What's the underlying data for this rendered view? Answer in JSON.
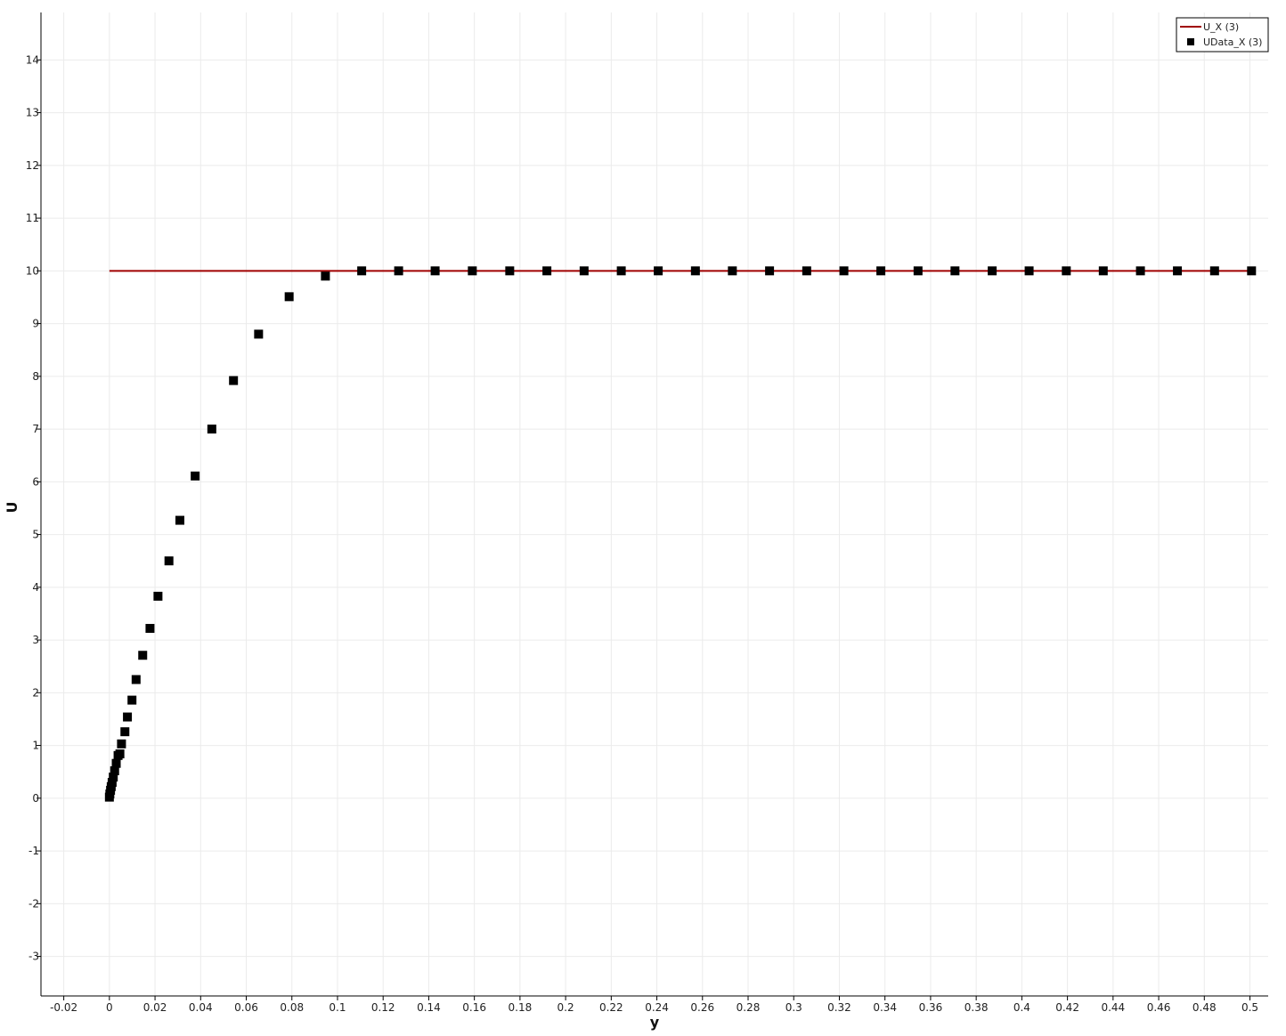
{
  "chart_data": {
    "type": "scatter",
    "xlabel": "y",
    "ylabel": "U",
    "xlim": [
      -0.03,
      0.508
    ],
    "ylim": [
      -3.75,
      14.9
    ],
    "grid": true,
    "legend_position": "top-right",
    "x_ticks": [
      "-0.02",
      "0",
      "0.02",
      "0.04",
      "0.06",
      "0.08",
      "0.1",
      "0.12",
      "0.14",
      "0.16",
      "0.18",
      "0.2",
      "0.22",
      "0.24",
      "0.26",
      "0.28",
      "0.3",
      "0.32",
      "0.34",
      "0.36",
      "0.38",
      "0.4",
      "0.42",
      "0.44",
      "0.46",
      "0.48",
      "0.5"
    ],
    "y_ticks": [
      "-3",
      "-2",
      "-1",
      "0",
      "1",
      "2",
      "3",
      "4",
      "5",
      "6",
      "7",
      "8",
      "9",
      "10",
      "11",
      "12",
      "13",
      "14"
    ],
    "series": [
      {
        "name": "U_X (3)",
        "type": "line",
        "color": "#a00000",
        "x": [
          0,
          0.5
        ],
        "y": [
          10,
          10
        ]
      },
      {
        "name": "UData_X (3)",
        "type": "scatter",
        "marker": "square",
        "color": "#000000",
        "x": [
          0.0,
          0.0002,
          0.0005,
          0.0008,
          0.0012,
          0.0017,
          0.0023,
          0.003,
          0.0038,
          0.0046,
          0.0053,
          0.0068,
          0.0079,
          0.0099,
          0.0117,
          0.0146,
          0.0178,
          0.0213,
          0.0261,
          0.0309,
          0.0376,
          0.0449,
          0.0544,
          0.0654,
          0.0788,
          0.0947,
          0.1106,
          0.1268,
          0.1428,
          0.1591,
          0.1755,
          0.1918,
          0.2081,
          0.2244,
          0.2406,
          0.2569,
          0.2731,
          0.2894,
          0.3057,
          0.322,
          0.3382,
          0.3545,
          0.3707,
          0.387,
          0.4032,
          0.4195,
          0.4357,
          0.452,
          0.4682,
          0.4845,
          0.5007
        ],
        "y": [
          0.02,
          0.08,
          0.15,
          0.22,
          0.3,
          0.4,
          0.52,
          0.66,
          0.81,
          0.84,
          1.03,
          1.26,
          1.54,
          1.86,
          2.25,
          2.71,
          3.22,
          3.83,
          4.5,
          5.27,
          6.11,
          7.0,
          7.92,
          8.8,
          9.51,
          9.9,
          10.0,
          10.0,
          10.0,
          10.0,
          10.0,
          10.0,
          10.0,
          10.0,
          10.0,
          10.0,
          10.0,
          10.0,
          10.0,
          10.0,
          10.0,
          10.0,
          10.0,
          10.0,
          10.0,
          10.0,
          10.0,
          10.0,
          10.0,
          10.0,
          10.0
        ]
      }
    ]
  },
  "colors": {
    "grid": "#ebebeb",
    "axis": "#000000",
    "line_series": "#a00000",
    "marker_series": "#000000"
  }
}
